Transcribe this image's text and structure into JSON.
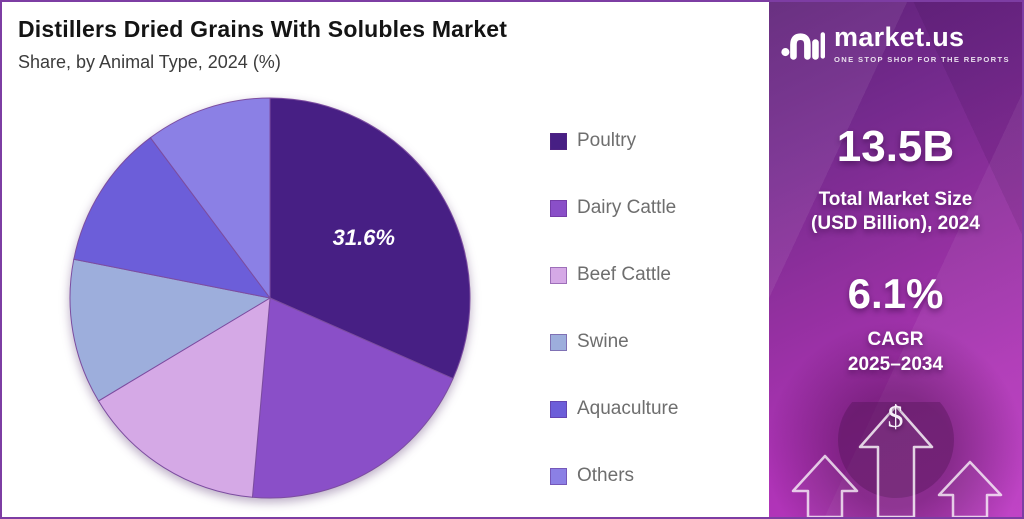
{
  "header": {
    "title": "Distillers Dried Grains With Solubles Market",
    "subtitle": "Share, by Animal Type, 2024 (%)"
  },
  "chart_data": {
    "type": "pie",
    "title": "Distillers Dried Grains With Solubles Market Share, by Animal Type, 2024 (%)",
    "categories": [
      "Poultry",
      "Dairy Cattle",
      "Beef Cattle",
      "Swine",
      "Aquaculture",
      "Others"
    ],
    "values": [
      31.6,
      19.8,
      15.0,
      11.7,
      11.7,
      10.2
    ],
    "colors": [
      "#471f84",
      "#8a4fc8",
      "#d5a9e6",
      "#9daedc",
      "#6c5ed9",
      "#8b80e5"
    ],
    "slice_stroke": "#7c4da0",
    "labeled_slice": {
      "index": 0,
      "text": "31.6%"
    },
    "legend_position": "right",
    "start_angle_deg": -90,
    "direction": "clockwise"
  },
  "sidebar": {
    "brand": {
      "name": "market.us",
      "tagline": "ONE STOP SHOP FOR THE REPORTS"
    },
    "stats": {
      "market_size_value": "13.5B",
      "market_size_label_line1": "Total Market Size",
      "market_size_label_line2": "(USD Billion), 2024",
      "cagr_value": "6.1%",
      "cagr_label_line1": "CAGR",
      "cagr_label_line2": "2025–2034"
    },
    "dollar_symbol": "$",
    "accent_gradient": [
      "#5e2178",
      "#bc38c2"
    ]
  }
}
